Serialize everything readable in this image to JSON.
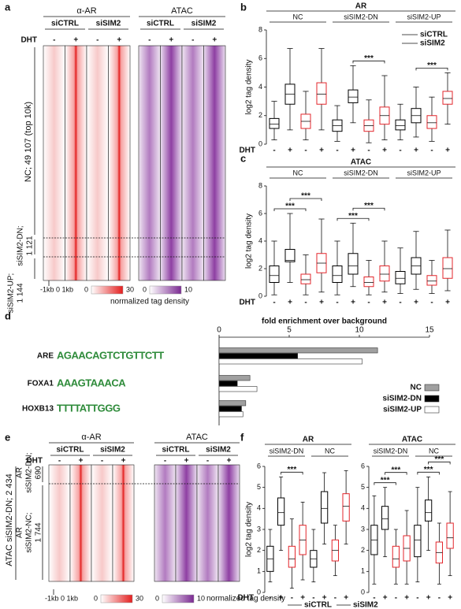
{
  "panel_labels": [
    "a",
    "b",
    "c",
    "d",
    "e",
    "f"
  ],
  "heatmap_a": {
    "headers": [
      "α-AR",
      "ATAC"
    ],
    "conditions": [
      "siCTRL",
      "siSIM2",
      "siCTRL",
      "siSIM2"
    ],
    "dht_label": "DHT",
    "dht_signs": [
      "-",
      "+",
      "-",
      "+",
      "-",
      "+",
      "-",
      "+"
    ],
    "row_labels": [
      "NC; 49 107 (top 10k)",
      "siSIM2-DN;",
      "1 121",
      "siSIM2-UP;",
      "1 144"
    ],
    "scale_label": "-1kb 0 1kb",
    "colorbar_ar": [
      0,
      30
    ],
    "colorbar_atac": [
      0,
      10
    ],
    "colorbar_label": "normalized tag density"
  },
  "heatmap_e": {
    "headers": [
      "α-AR",
      "ATAC"
    ],
    "conditions": [
      "siCTRL",
      "siSIM2",
      "siCTRL",
      "siSIM2"
    ],
    "dht_label": "DHT",
    "dht_signs": [
      "-",
      "+",
      "-",
      "+",
      "-",
      "+",
      "-",
      "+"
    ],
    "row_labels": [
      "ATAC siSIM2-DN; 2 434",
      "AR",
      "siSIM2-DN;",
      "690",
      "AR",
      "siSIM2-NC;",
      "1 744"
    ],
    "scale_label": "-1kb 0 1kb",
    "colorbar_ar": [
      0,
      30
    ],
    "colorbar_atac": [
      0,
      10
    ],
    "colorbar_label": "normalized tag density"
  },
  "chart_data": [
    {
      "type": "box",
      "title": "AR",
      "ylabel": "log2 tag density",
      "ylim": [
        0,
        8
      ],
      "yticks": [
        0,
        2,
        4,
        6,
        8
      ],
      "x_label": "DHT",
      "x_ticks": [
        "-",
        "+",
        "-",
        "+"
      ],
      "legend": "upper right",
      "series": [
        {
          "name": "siCTRL",
          "color": "#000000"
        },
        {
          "name": "siSIM2",
          "color": "#e3262b"
        }
      ],
      "groups": [
        {
          "name": "NC",
          "boxes": [
            {
              "low": 0.3,
              "q1": 1.1,
              "median": 1.4,
              "q3": 1.8,
              "high": 3.0
            },
            {
              "low": 1.0,
              "q1": 2.8,
              "median": 3.5,
              "q3": 4.2,
              "high": 6.7
            },
            {
              "low": 0.3,
              "q1": 1.1,
              "median": 1.6,
              "q3": 2.1,
              "high": 3.7
            },
            {
              "low": 1.0,
              "q1": 2.8,
              "median": 3.5,
              "q3": 4.3,
              "high": 6.7
            }
          ],
          "significance": []
        },
        {
          "name": "siSIM2-DN",
          "boxes": [
            {
              "low": 0.2,
              "q1": 0.9,
              "median": 1.3,
              "q3": 1.7,
              "high": 2.7
            },
            {
              "low": 1.5,
              "q1": 2.9,
              "median": 3.3,
              "q3": 3.8,
              "high": 5.5
            },
            {
              "low": 0.1,
              "q1": 0.9,
              "median": 1.3,
              "q3": 1.7,
              "high": 3.1
            },
            {
              "low": 0.3,
              "q1": 1.4,
              "median": 2.0,
              "q3": 2.6,
              "high": 4.8
            }
          ],
          "significance": [
            {
              "between": [
                1,
                3
              ],
              "label": "***"
            }
          ]
        },
        {
          "name": "siSIM2-UP",
          "boxes": [
            {
              "low": 0.3,
              "q1": 1.0,
              "median": 1.3,
              "q3": 1.7,
              "high": 2.8
            },
            {
              "low": 0.5,
              "q1": 1.5,
              "median": 2.0,
              "q3": 2.5,
              "high": 4.0
            },
            {
              "low": 0.2,
              "q1": 1.1,
              "median": 1.5,
              "q3": 2.0,
              "high": 3.3
            },
            {
              "low": 1.4,
              "q1": 2.8,
              "median": 3.2,
              "q3": 3.7,
              "high": 5.0
            }
          ],
          "significance": [
            {
              "between": [
                1,
                3
              ],
              "label": "***"
            }
          ]
        }
      ]
    },
    {
      "type": "box",
      "title": "ATAC",
      "ylabel": "log2 tag density",
      "ylim": [
        0,
        8
      ],
      "yticks": [
        0,
        2,
        4,
        6,
        8
      ],
      "x_label": "DHT",
      "x_ticks": [
        "-",
        "+",
        "-",
        "+"
      ],
      "colors": [
        "#000000",
        "#e3262b"
      ],
      "groups": [
        {
          "name": "NC",
          "boxes": [
            {
              "low": 0.1,
              "q1": 1.0,
              "median": 1.5,
              "q3": 2.2,
              "high": 4.0
            },
            {
              "low": 1.0,
              "q1": 2.5,
              "median": 2.6,
              "q3": 3.4,
              "high": 6.0
            },
            {
              "low": 0.1,
              "q1": 0.9,
              "median": 1.2,
              "q3": 1.6,
              "high": 3.0
            },
            {
              "low": 0.3,
              "q1": 1.7,
              "median": 2.4,
              "q3": 3.1,
              "high": 5.6
            }
          ],
          "significance": [
            {
              "between": [
                0,
                2
              ],
              "label": "***"
            },
            {
              "between": [
                1,
                3
              ],
              "label": "***"
            }
          ]
        },
        {
          "name": "siSIM2-DN",
          "boxes": [
            {
              "low": 0.1,
              "q1": 1.0,
              "median": 1.5,
              "q3": 2.2,
              "high": 4.0
            },
            {
              "low": 0.7,
              "q1": 1.6,
              "median": 2.2,
              "q3": 3.1,
              "high": 5.3
            },
            {
              "low": 0.1,
              "q1": 0.7,
              "median": 1.0,
              "q3": 1.4,
              "high": 2.6
            },
            {
              "low": 0.3,
              "q1": 1.1,
              "median": 1.6,
              "q3": 2.2,
              "high": 4.0
            }
          ],
          "significance": [
            {
              "between": [
                0,
                2
              ],
              "label": "***"
            },
            {
              "between": [
                1,
                3
              ],
              "label": "***"
            }
          ]
        },
        {
          "name": "siSIM2-UP",
          "boxes": [
            {
              "low": 0.2,
              "q1": 0.9,
              "median": 1.3,
              "q3": 1.8,
              "high": 3.5
            },
            {
              "low": 0.5,
              "q1": 1.6,
              "median": 2.2,
              "q3": 2.8,
              "high": 4.7
            },
            {
              "low": 0.2,
              "q1": 0.8,
              "median": 1.1,
              "q3": 1.5,
              "high": 2.6
            },
            {
              "low": 0.4,
              "q1": 1.3,
              "median": 2.0,
              "q3": 2.8,
              "high": 4.8
            }
          ],
          "significance": []
        }
      ]
    },
    {
      "type": "hbar",
      "title": "fold enrichment over background",
      "xlim": [
        0,
        15
      ],
      "xticks": [
        0,
        5,
        10,
        15
      ],
      "categories": [
        "ARE",
        "FOXA1",
        "HOXB13"
      ],
      "motifs": [
        "AGAACAGTCTGTTCTT",
        "AAAGTAAACA",
        "TTTTATTGGG"
      ],
      "series": [
        {
          "name": "NC",
          "color": "#a0a0a0",
          "values": [
            11.3,
            2.2,
            1.9
          ]
        },
        {
          "name": "siSIM2-DN",
          "color": "#000000",
          "values": [
            5.6,
            1.3,
            1.6
          ]
        },
        {
          "name": "siSIM2-UP",
          "color": "#ffffff",
          "values": [
            10.2,
            2.7,
            1.7
          ]
        }
      ]
    },
    {
      "type": "box",
      "title": "AR",
      "ylabel": "log2 tag density",
      "ylim": [
        0,
        6
      ],
      "yticks": [
        0,
        1,
        2,
        3,
        4,
        5,
        6
      ],
      "x_label": "DHT",
      "x_ticks": [
        "-",
        "+",
        "-",
        "+"
      ],
      "colors": [
        "#000000",
        "#e3262b"
      ],
      "groups": [
        {
          "name": "siSIM2-DN",
          "boxes": [
            {
              "low": 0.5,
              "q1": 1.0,
              "median": 1.6,
              "q3": 2.2,
              "high": 3.0
            },
            {
              "low": 2.0,
              "q1": 3.2,
              "median": 3.8,
              "q3": 4.5,
              "high": 5.5
            },
            {
              "low": 0.2,
              "q1": 1.2,
              "median": 1.6,
              "q3": 2.2,
              "high": 3.5
            },
            {
              "low": 0.6,
              "q1": 1.8,
              "median": 2.5,
              "q3": 3.2,
              "high": 4.3
            }
          ],
          "significance": [
            {
              "between": [
                1,
                3
              ],
              "label": "***"
            }
          ]
        },
        {
          "name": "NC",
          "boxes": [
            {
              "low": 0.5,
              "q1": 1.2,
              "median": 1.6,
              "q3": 2.0,
              "high": 3.0
            },
            {
              "low": 2.3,
              "q1": 3.3,
              "median": 4.0,
              "q3": 4.8,
              "high": 5.7
            },
            {
              "low": 0.8,
              "q1": 1.5,
              "median": 2.0,
              "q3": 2.5,
              "high": 3.2
            },
            {
              "low": 2.3,
              "q1": 3.4,
              "median": 4.1,
              "q3": 4.7,
              "high": 5.8
            }
          ],
          "significance": []
        }
      ]
    },
    {
      "type": "box",
      "title": "ATAC",
      "ylim": [
        0,
        6
      ],
      "yticks": [
        0,
        1,
        2,
        3,
        4,
        5,
        6
      ],
      "x_ticks": [
        "-",
        "+",
        "-",
        "+"
      ],
      "legend": "bottom",
      "series": [
        {
          "name": "siCTRL",
          "color": "#000000"
        },
        {
          "name": "siSIM2",
          "color": "#e3262b"
        }
      ],
      "groups": [
        {
          "name": "siSIM2-DN",
          "boxes": [
            {
              "low": 0.4,
              "q1": 1.8,
              "median": 2.5,
              "q3": 3.2,
              "high": 4.6
            },
            {
              "low": 1.7,
              "q1": 3.0,
              "median": 3.5,
              "q3": 4.1,
              "high": 5.0
            },
            {
              "low": 0.4,
              "q1": 1.2,
              "median": 1.6,
              "q3": 2.2,
              "high": 3.0
            },
            {
              "low": 0.4,
              "q1": 1.5,
              "median": 2.1,
              "q3": 2.7,
              "high": 3.9
            }
          ],
          "significance": [
            {
              "between": [
                0,
                2
              ],
              "label": "***"
            },
            {
              "between": [
                1,
                3
              ],
              "label": "***"
            }
          ]
        },
        {
          "name": "NC",
          "boxes": [
            {
              "low": 0.5,
              "q1": 1.7,
              "median": 2.5,
              "q3": 3.2,
              "high": 5.0
            },
            {
              "low": 2.0,
              "q1": 3.4,
              "median": 3.8,
              "q3": 4.4,
              "high": 5.5
            },
            {
              "low": 0.4,
              "q1": 1.4,
              "median": 1.9,
              "q3": 2.4,
              "high": 3.3
            },
            {
              "low": 0.8,
              "q1": 2.1,
              "median": 2.6,
              "q3": 3.3,
              "high": 4.8
            }
          ],
          "significance": [
            {
              "between": [
                0,
                2
              ],
              "label": "***"
            },
            {
              "between": [
                1,
                3
              ],
              "label": "***"
            }
          ]
        }
      ]
    }
  ]
}
